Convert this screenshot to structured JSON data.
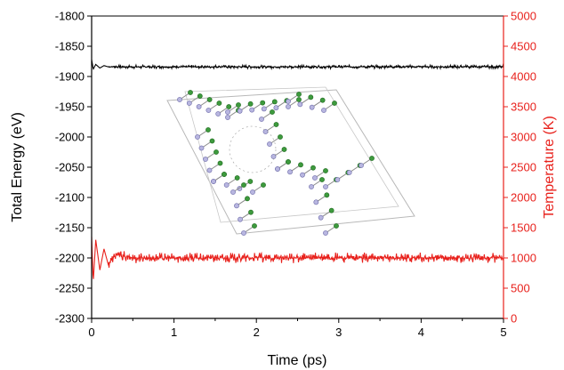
{
  "chart_data": {
    "type": "line",
    "xlabel": "Time (ps)",
    "ylabel_left": "Total Energy (eV)",
    "ylabel_right": "Temperature (K)",
    "xlim": [
      0,
      5
    ],
    "ylim_left": [
      -2300,
      -1800
    ],
    "ylim_right": [
      0,
      5000
    ],
    "xticks": [
      0,
      1,
      2,
      3,
      4,
      5
    ],
    "yticks_left": [
      -2300,
      -2250,
      -2200,
      -2150,
      -2100,
      -2050,
      -2000,
      -1950,
      -1900,
      -1850,
      -1800
    ],
    "yticks_right": [
      0,
      500,
      1000,
      1500,
      2000,
      2500,
      3000,
      3500,
      4000,
      4500,
      5000
    ],
    "grid": false,
    "colors": {
      "energy": "#000000",
      "temperature": "#e8211c",
      "atom_light": "#b8b6e0",
      "atom_green": "#3d9a3d"
    },
    "series": [
      {
        "axis": "left",
        "color": "#000000",
        "x": [
          0,
          0.02,
          0.05,
          0.1,
          0.15,
          0.2,
          0.5,
          1,
          1.5,
          2,
          2.5,
          3,
          3.5,
          4,
          4.5,
          5
        ],
        "y": [
          -1872,
          -1888,
          -1880,
          -1886,
          -1882,
          -1884,
          -1884,
          -1884,
          -1884,
          -1884,
          -1884,
          -1884,
          -1884,
          -1884,
          -1884,
          -1884
        ],
        "fluctuation": 3
      },
      {
        "axis": "right",
        "color": "#e8211c",
        "x": [
          0,
          0.02,
          0.05,
          0.1,
          0.15,
          0.2,
          0.3,
          0.5,
          1,
          1.5,
          2,
          2.5,
          3,
          3.5,
          4,
          4.5,
          5
        ],
        "y": [
          1350,
          600,
          1300,
          800,
          1150,
          900,
          1050,
          1000,
          1000,
          1000,
          1000,
          1000,
          1000,
          1000,
          1000,
          1000,
          1000
        ],
        "fluctuation": 90
      }
    ],
    "inset": {
      "type": "molecular-structure-image"
    }
  }
}
